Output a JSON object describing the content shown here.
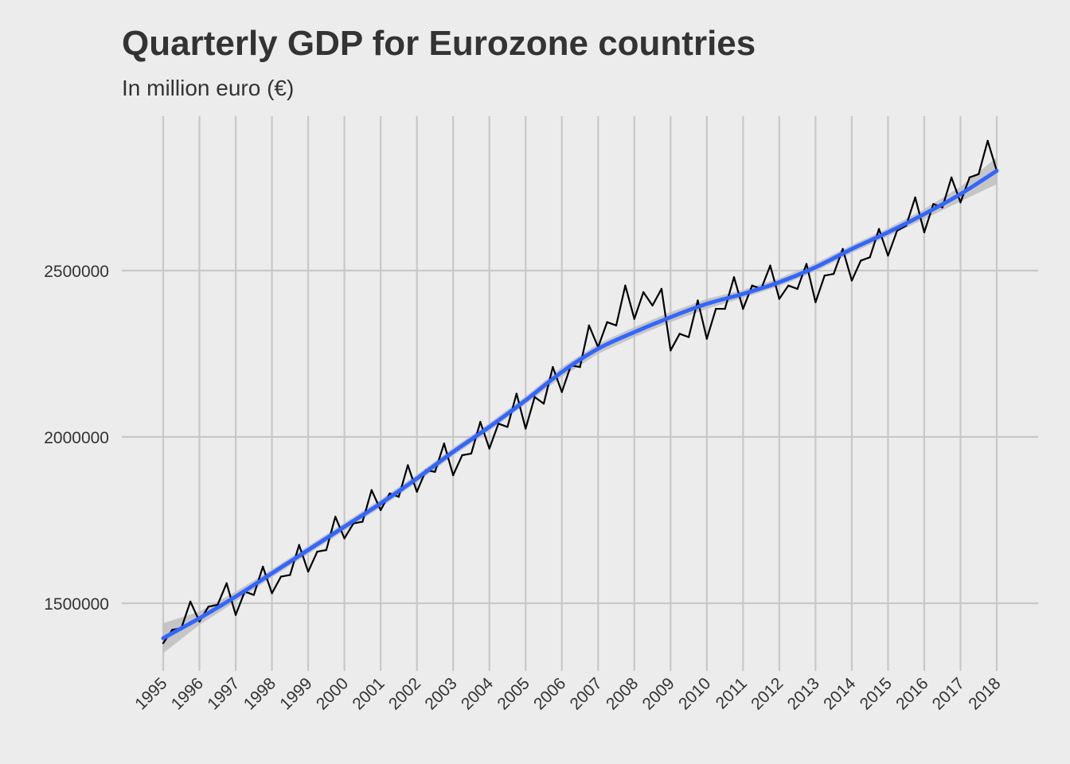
{
  "chart_data": {
    "type": "line",
    "title": "Quarterly GDP for Eurozone countries",
    "subtitle": "In million euro (€)",
    "xlabel": "",
    "ylabel": "",
    "x_ticks": [
      "1995",
      "1996",
      "1997",
      "1998",
      "1999",
      "2000",
      "2001",
      "2002",
      "2003",
      "2004",
      "2005",
      "2006",
      "2007",
      "2008",
      "2009",
      "2010",
      "2011",
      "2012",
      "2013",
      "2014",
      "2015",
      "2016",
      "2017",
      "2018"
    ],
    "y_ticks": [
      1500000,
      2000000,
      2500000
    ],
    "y_tick_labels": [
      "1500000",
      "2000000",
      "2500000"
    ],
    "xlim": [
      1995,
      2018
    ],
    "ylim": [
      1400000,
      2900000
    ],
    "grid": true,
    "legend": "none",
    "colors": {
      "background": "#ececec",
      "grid": "#c8c8c8",
      "gdp_line": "#000000",
      "trend_line": "#3366ff",
      "confidence_band": "#bebebe"
    },
    "series": [
      {
        "kind": "observed",
        "x": [
          1995.0,
          1995.25,
          1995.5,
          1995.75,
          1996.0,
          1996.25,
          1996.5,
          1996.75,
          1997.0,
          1997.25,
          1997.5,
          1997.75,
          1998.0,
          1998.25,
          1998.5,
          1998.75,
          1999.0,
          1999.25,
          1999.5,
          1999.75,
          2000.0,
          2000.25,
          2000.5,
          2000.75,
          2001.0,
          2001.25,
          2001.5,
          2001.75,
          2002.0,
          2002.25,
          2002.5,
          2002.75,
          2003.0,
          2003.25,
          2003.5,
          2003.75,
          2004.0,
          2004.25,
          2004.5,
          2004.75,
          2005.0,
          2005.25,
          2005.5,
          2005.75,
          2006.0,
          2006.25,
          2006.5,
          2006.75,
          2007.0,
          2007.25,
          2007.5,
          2007.75,
          2008.0,
          2008.25,
          2008.5,
          2008.75,
          2009.0,
          2009.25,
          2009.5,
          2009.75,
          2010.0,
          2010.25,
          2010.5,
          2010.75,
          2011.0,
          2011.25,
          2011.5,
          2011.75,
          2012.0,
          2012.25,
          2012.5,
          2012.75,
          2013.0,
          2013.25,
          2013.5,
          2013.75,
          2014.0,
          2014.25,
          2014.5,
          2014.75,
          2015.0,
          2015.25,
          2015.5,
          2015.75,
          2016.0,
          2016.25,
          2016.5,
          2016.75,
          2017.0,
          2017.25,
          2017.5,
          2017.75,
          2018.0
        ],
        "values": [
          1380000,
          1420000,
          1425000,
          1505000,
          1445000,
          1490000,
          1495000,
          1560000,
          1465000,
          1535000,
          1525000,
          1610000,
          1530000,
          1580000,
          1585000,
          1675000,
          1595000,
          1655000,
          1660000,
          1760000,
          1695000,
          1740000,
          1745000,
          1840000,
          1780000,
          1830000,
          1820000,
          1915000,
          1835000,
          1900000,
          1895000,
          1980000,
          1885000,
          1945000,
          1950000,
          2045000,
          1965000,
          2040000,
          2030000,
          2130000,
          2025000,
          2120000,
          2100000,
          2210000,
          2135000,
          2215000,
          2210000,
          2335000,
          2270000,
          2345000,
          2335000,
          2455000,
          2355000,
          2435000,
          2395000,
          2445000,
          2260000,
          2310000,
          2300000,
          2410000,
          2295000,
          2385000,
          2385000,
          2480000,
          2385000,
          2455000,
          2445000,
          2515000,
          2415000,
          2455000,
          2445000,
          2520000,
          2405000,
          2485000,
          2490000,
          2565000,
          2470000,
          2530000,
          2540000,
          2625000,
          2545000,
          2620000,
          2635000,
          2720000,
          2615000,
          2700000,
          2690000,
          2780000,
          2705000,
          2780000,
          2790000,
          2890000,
          2800000
        ]
      },
      {
        "kind": "trend",
        "x": [
          1995,
          1996,
          1997,
          1998,
          1999,
          2000,
          2001,
          2002,
          2003,
          2004,
          2005,
          2006,
          2007,
          2008,
          2009,
          2010,
          2011,
          2012,
          2013,
          2014,
          2015,
          2016,
          2017,
          2018
        ],
        "values": [
          1395000,
          1455000,
          1520000,
          1590000,
          1660000,
          1730000,
          1800000,
          1875000,
          1955000,
          2030000,
          2110000,
          2195000,
          2265000,
          2315000,
          2360000,
          2400000,
          2430000,
          2465000,
          2510000,
          2565000,
          2615000,
          2670000,
          2730000,
          2800000
        ],
        "band_halfwidth": [
          45000,
          20000,
          15000,
          12000,
          12000,
          12000,
          12000,
          12000,
          12000,
          12000,
          12000,
          15000,
          15000,
          15000,
          15000,
          15000,
          12000,
          12000,
          12000,
          12000,
          12000,
          15000,
          22000,
          40000
        ]
      }
    ]
  }
}
